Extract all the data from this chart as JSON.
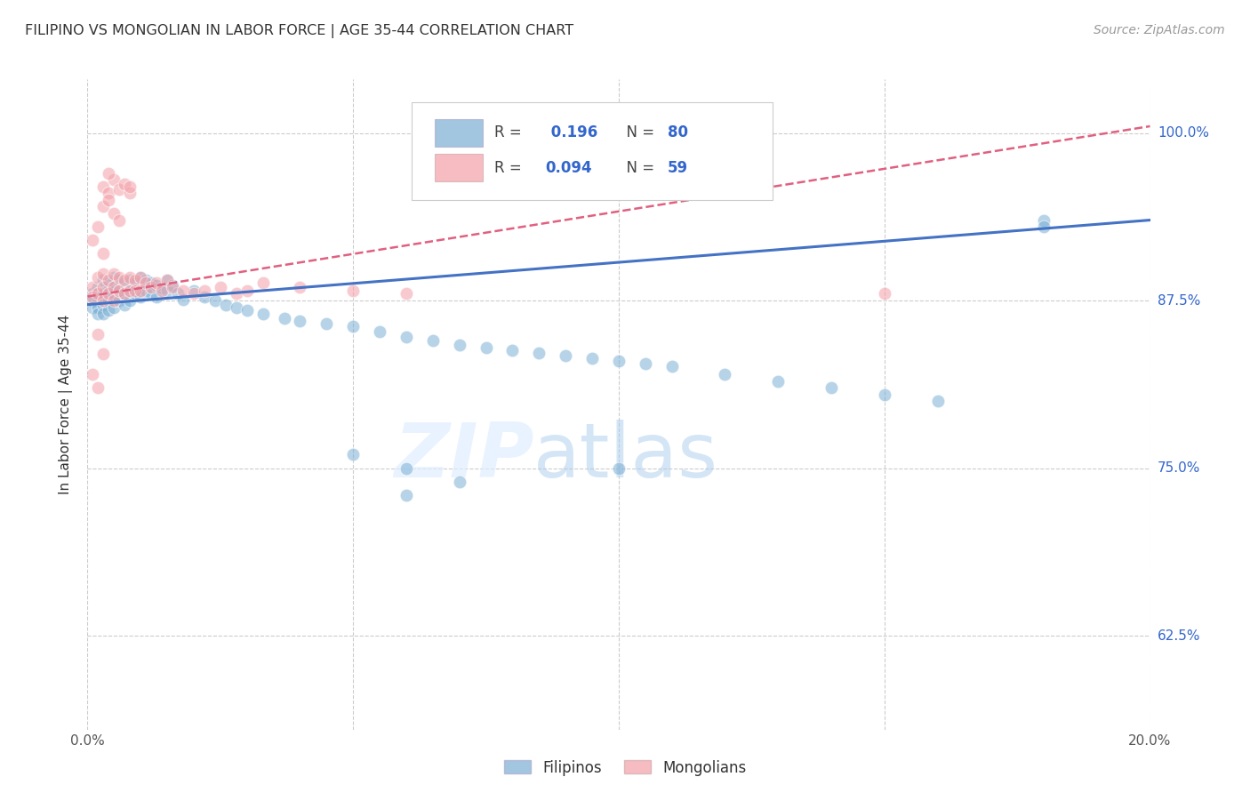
{
  "title": "FILIPINO VS MONGOLIAN IN LABOR FORCE | AGE 35-44 CORRELATION CHART",
  "source": "Source: ZipAtlas.com",
  "ylabel_label": "In Labor Force | Age 35-44",
  "x_min": 0.0,
  "x_max": 0.2,
  "y_min": 0.555,
  "y_max": 1.04,
  "y_ticks": [
    0.625,
    0.75,
    0.875,
    1.0
  ],
  "y_tick_labels": [
    "62.5%",
    "75.0%",
    "87.5%",
    "100.0%"
  ],
  "x_ticks": [
    0.0,
    0.05,
    0.1,
    0.15,
    0.2
  ],
  "x_tick_labels": [
    "0.0%",
    "",
    "",
    "",
    "20.0%"
  ],
  "watermark_zip": "ZIP",
  "watermark_atlas": "atlas",
  "blue_color": "#7BAfd4",
  "pink_color": "#F4A0A8",
  "blue_line_color": "#4472C4",
  "pink_line_color": "#E06080",
  "blue_trend_x": [
    0.0,
    0.2
  ],
  "blue_trend_y": [
    0.872,
    0.935
  ],
  "pink_trend_x": [
    0.0,
    0.2
  ],
  "pink_trend_y": [
    0.878,
    1.005
  ],
  "filipino_x": [
    0.001,
    0.001,
    0.001,
    0.002,
    0.002,
    0.002,
    0.002,
    0.003,
    0.003,
    0.003,
    0.003,
    0.004,
    0.004,
    0.004,
    0.004,
    0.005,
    0.005,
    0.005,
    0.005,
    0.006,
    0.006,
    0.006,
    0.007,
    0.007,
    0.007,
    0.008,
    0.008,
    0.008,
    0.009,
    0.009,
    0.01,
    0.01,
    0.01,
    0.011,
    0.011,
    0.012,
    0.012,
    0.013,
    0.013,
    0.014,
    0.015,
    0.015,
    0.016,
    0.017,
    0.018,
    0.02,
    0.022,
    0.024,
    0.026,
    0.028,
    0.03,
    0.033,
    0.037,
    0.04,
    0.045,
    0.05,
    0.055,
    0.06,
    0.065,
    0.07,
    0.075,
    0.08,
    0.085,
    0.09,
    0.095,
    0.1,
    0.105,
    0.11,
    0.12,
    0.13,
    0.14,
    0.15,
    0.16,
    0.18,
    0.05,
    0.06,
    0.07,
    0.1,
    0.18,
    0.06
  ],
  "filipino_y": [
    0.88,
    0.875,
    0.87,
    0.885,
    0.878,
    0.87,
    0.865,
    0.89,
    0.88,
    0.872,
    0.865,
    0.888,
    0.882,
    0.875,
    0.868,
    0.892,
    0.885,
    0.878,
    0.87,
    0.89,
    0.882,
    0.875,
    0.888,
    0.88,
    0.872,
    0.89,
    0.882,
    0.875,
    0.888,
    0.88,
    0.892,
    0.885,
    0.878,
    0.89,
    0.882,
    0.888,
    0.88,
    0.886,
    0.878,
    0.884,
    0.89,
    0.882,
    0.886,
    0.88,
    0.876,
    0.882,
    0.878,
    0.875,
    0.872,
    0.87,
    0.868,
    0.865,
    0.862,
    0.86,
    0.858,
    0.856,
    0.852,
    0.848,
    0.845,
    0.842,
    0.84,
    0.838,
    0.836,
    0.834,
    0.832,
    0.83,
    0.828,
    0.826,
    0.82,
    0.815,
    0.81,
    0.805,
    0.8,
    0.935,
    0.76,
    0.75,
    0.74,
    0.75,
    0.93,
    0.73
  ],
  "mongolian_x": [
    0.001,
    0.001,
    0.002,
    0.002,
    0.003,
    0.003,
    0.003,
    0.004,
    0.004,
    0.005,
    0.005,
    0.005,
    0.006,
    0.006,
    0.007,
    0.007,
    0.008,
    0.008,
    0.009,
    0.009,
    0.01,
    0.01,
    0.011,
    0.012,
    0.013,
    0.014,
    0.015,
    0.016,
    0.018,
    0.02,
    0.022,
    0.025,
    0.028,
    0.03,
    0.033,
    0.04,
    0.05,
    0.06,
    0.003,
    0.004,
    0.005,
    0.006,
    0.007,
    0.008,
    0.003,
    0.004,
    0.001,
    0.002,
    0.005,
    0.003,
    0.15,
    0.004,
    0.006,
    0.008,
    0.002,
    0.003,
    0.001,
    0.002
  ],
  "mongolian_y": [
    0.885,
    0.878,
    0.892,
    0.88,
    0.895,
    0.885,
    0.875,
    0.89,
    0.88,
    0.895,
    0.885,
    0.875,
    0.892,
    0.882,
    0.89,
    0.88,
    0.892,
    0.882,
    0.89,
    0.882,
    0.892,
    0.882,
    0.888,
    0.885,
    0.888,
    0.882,
    0.89,
    0.885,
    0.882,
    0.88,
    0.882,
    0.885,
    0.88,
    0.882,
    0.888,
    0.885,
    0.882,
    0.88,
    0.96,
    0.955,
    0.965,
    0.958,
    0.962,
    0.955,
    0.945,
    0.95,
    0.92,
    0.93,
    0.94,
    0.91,
    0.88,
    0.97,
    0.935,
    0.96,
    0.85,
    0.835,
    0.82,
    0.81
  ]
}
